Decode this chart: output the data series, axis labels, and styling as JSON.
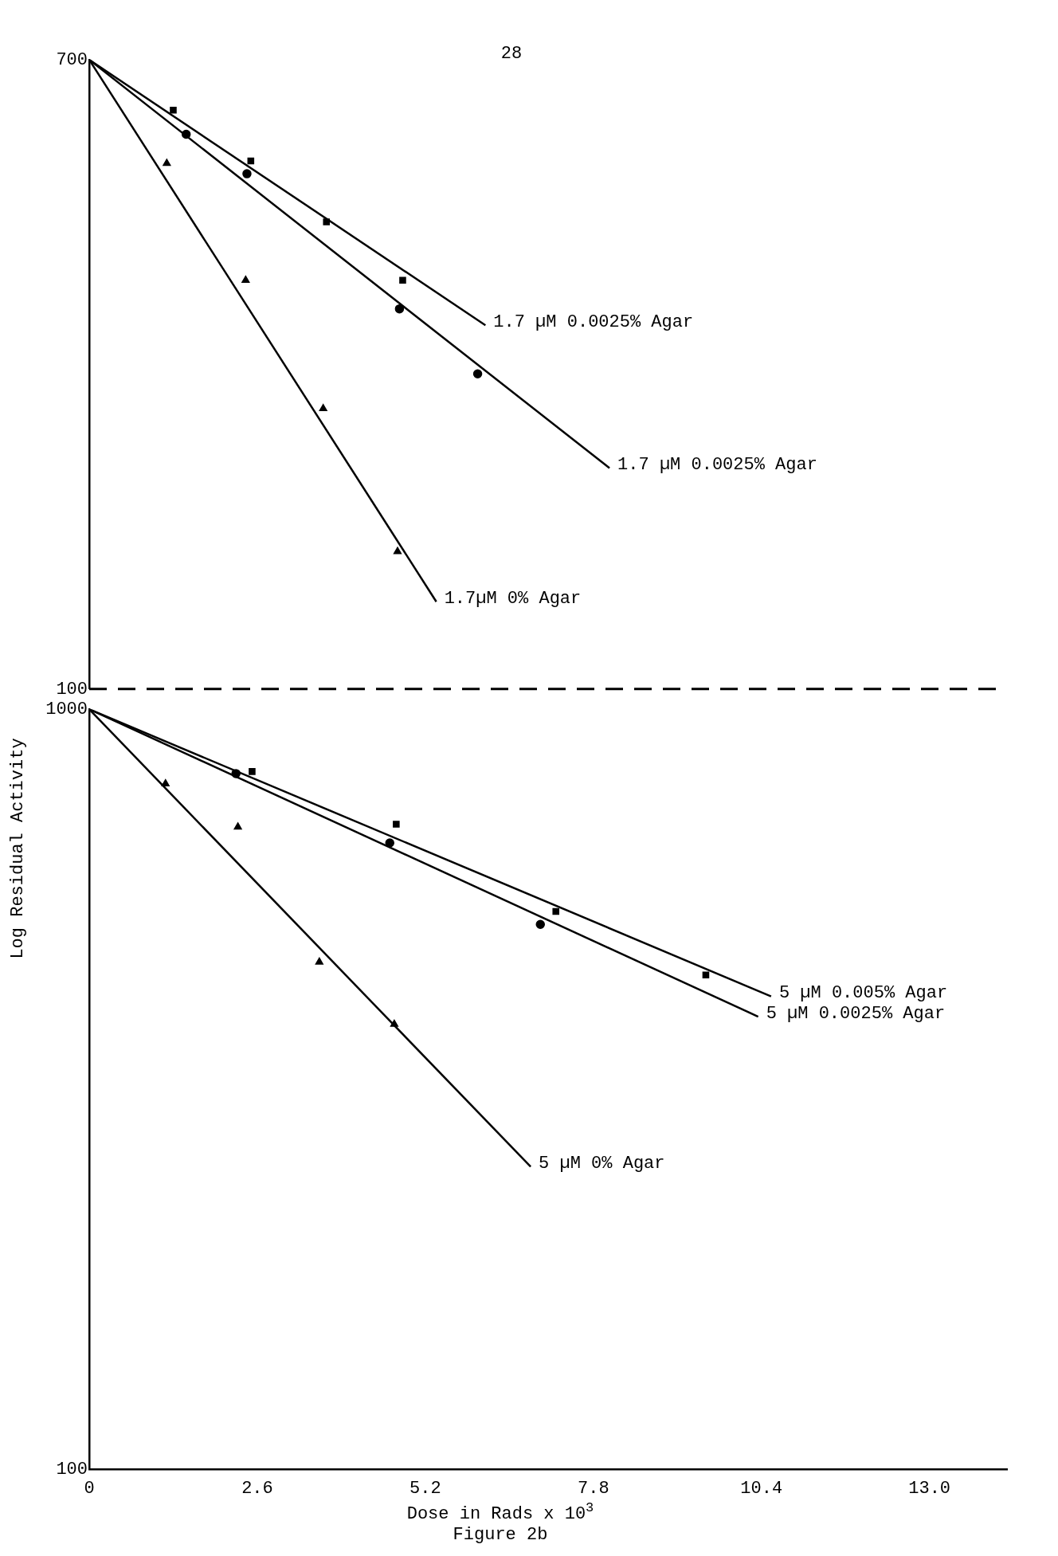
{
  "chart_data": [
    {
      "type": "scatter",
      "annotations": [
        "28"
      ],
      "xlim": [
        0,
        14.2
      ],
      "ylim": [
        100,
        700
      ],
      "yticks": [
        700,
        100
      ],
      "log": "y",
      "grid": false,
      "legend": false,
      "tick_labels": "y",
      "ref_lines": [
        {
          "axis": "y",
          "value": 100,
          "line_style": "dashed",
          "color": "#000000"
        }
      ],
      "series": [
        {
          "type": "line",
          "name": "1.7 µM 0.0025% Agar",
          "color": "#000000",
          "x": [
            0,
            6.13
          ],
          "values": [
            700,
            308
          ],
          "marker": "none"
        },
        {
          "type": "scatter",
          "color": "#000000",
          "x": [
            1.3,
            2.5,
            3.67,
            4.85
          ],
          "values": [
            599,
            512,
            424,
            354
          ],
          "marker": "square"
        },
        {
          "type": "line",
          "name": "1.7 µM 0.0025% Agar",
          "color": "#000000",
          "x": [
            0,
            8.05
          ],
          "values": [
            700,
            198
          ],
          "marker": "none"
        },
        {
          "type": "scatter",
          "color": "#000000",
          "x": [
            1.5,
            2.44,
            4.8,
            6.01
          ],
          "values": [
            556,
            492,
            324,
            265
          ],
          "marker": "circle"
        },
        {
          "type": "line",
          "name": "1.7µM 0% Agar",
          "color": "#000000",
          "x": [
            0,
            5.37
          ],
          "values": [
            700,
            131
          ],
          "marker": "none"
        },
        {
          "type": "scatter",
          "color": "#000000",
          "x": [
            1.2,
            2.42,
            3.62,
            4.77
          ],
          "values": [
            508,
            354,
            238,
            153
          ],
          "marker": "triangle"
        }
      ]
    },
    {
      "type": "scatter",
      "xlabel": "Dose in Rads x 10$^{3}$",
      "ylabel": "Log Residual Activity",
      "annotations": [
        "Figure 2b"
      ],
      "xlim": [
        0,
        14.2
      ],
      "ylim": [
        100,
        1000
      ],
      "xticks": [
        0,
        2.6,
        5.2,
        7.8,
        10.4,
        {
          "value": 13,
          "label": "13.0"
        }
      ],
      "yticks": [
        1000,
        100
      ],
      "log": "y",
      "grid": false,
      "legend": false,
      "series": [
        {
          "type": "line",
          "name": "5 µM 0.005% Agar",
          "color": "#000000",
          "x": [
            0,
            10.55
          ],
          "values": [
            1000,
            419
          ],
          "marker": "none"
        },
        {
          "type": "scatter",
          "color": "#000000",
          "x": [
            2.52,
            4.75,
            7.22,
            9.54
          ],
          "values": [
            828,
            706,
            542,
            447
          ],
          "marker": "square"
        },
        {
          "type": "line",
          "name": "5 µM 0.0025% Agar",
          "color": "#000000",
          "x": [
            0,
            10.35
          ],
          "values": [
            1000,
            394
          ],
          "marker": "none"
        },
        {
          "type": "scatter",
          "color": "#000000",
          "x": [
            2.27,
            4.65,
            6.98
          ],
          "values": [
            823,
            667,
            521
          ],
          "marker": "circle"
        },
        {
          "type": "line",
          "name": "5 µM 0% Agar",
          "color": "#000000",
          "x": [
            0,
            6.83
          ],
          "values": [
            1000,
            250
          ],
          "marker": "none"
        },
        {
          "type": "scatter",
          "color": "#000000",
          "x": [
            1.18,
            2.3,
            3.56,
            4.72
          ],
          "values": [
            798,
            700,
            465,
            385
          ],
          "marker": "triangle"
        }
      ]
    }
  ]
}
